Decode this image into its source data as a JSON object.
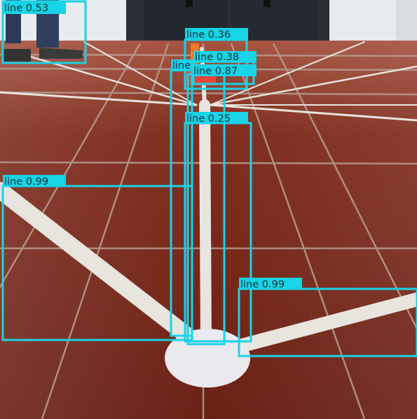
{
  "image": {
    "description_free": true,
    "colors": {
      "floor": "#7a2a1c",
      "floor_dark": "#5b1a10",
      "grout": "#b59a8e",
      "tape": "#e8e6df",
      "wall": "#e9ecef",
      "door": "#2a2f36",
      "box_color": "#19d3e6",
      "label_text": "#12303a"
    }
  },
  "detections": [
    {
      "label": "line 0.53"
    },
    {
      "label": "line 0.36"
    },
    {
      "label": "line 0.38"
    },
    {
      "label": "line 0.87"
    },
    {
      "label": "line 0.25"
    },
    {
      "label": "line 0.99"
    },
    {
      "label": "line 0.99"
    },
    {
      "label": "line"
    }
  ]
}
